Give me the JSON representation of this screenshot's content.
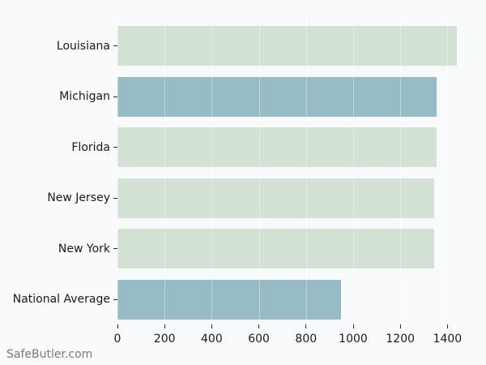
{
  "watermark": "SafeButler.com",
  "colors": {
    "background": "#f8f9fa",
    "bar_green": "#d4e1d5",
    "bar_blue": "#95bcc4",
    "gridline": "#ffffff",
    "tick": "#262626",
    "label_text": "#1a1a1a",
    "watermark_text": "#7a7a7a"
  },
  "chart_data": {
    "type": "bar",
    "orientation": "horizontal",
    "title": "",
    "xlabel": "",
    "ylabel": "",
    "categories": [
      "Louisiana",
      "Michigan",
      "Florida",
      "New Jersey",
      "New York",
      "National Average"
    ],
    "values": [
      1440,
      1355,
      1355,
      1345,
      1345,
      950
    ],
    "bar_colors": [
      "green",
      "blue",
      "green",
      "green",
      "green",
      "blue"
    ],
    "xticks": [
      0,
      200,
      400,
      600,
      800,
      1000,
      1200,
      1400
    ],
    "xlim": [
      0,
      1512
    ],
    "grid": true,
    "legend": false
  }
}
